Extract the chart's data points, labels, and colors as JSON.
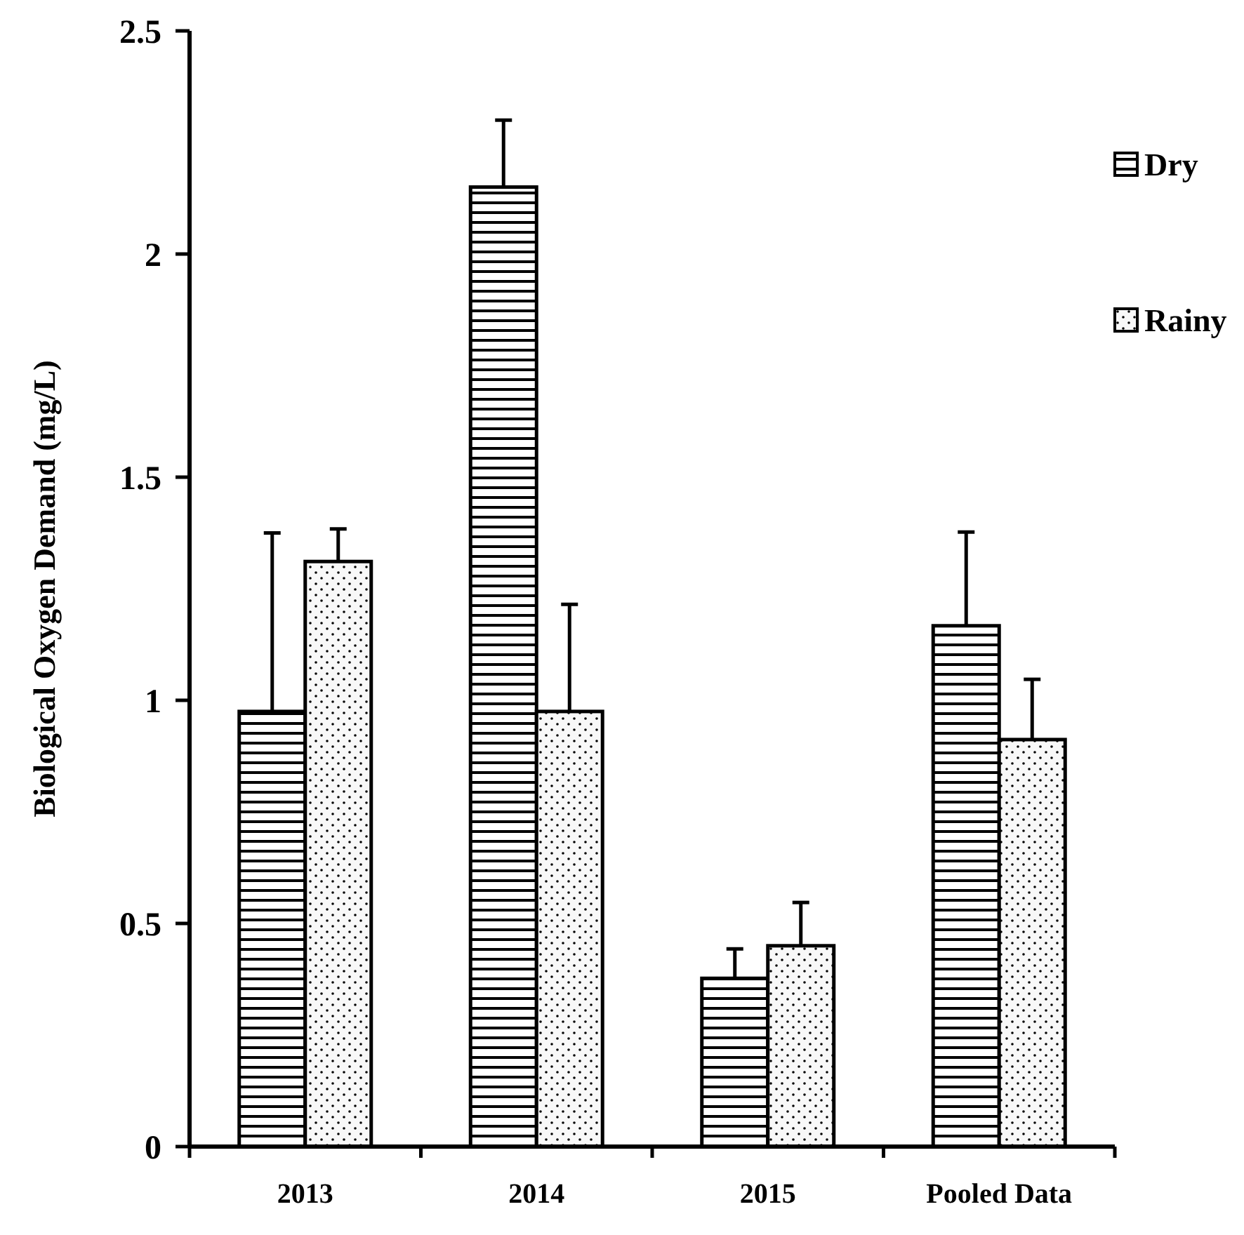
{
  "chart_data": {
    "type": "bar",
    "ylabel": "Biological Oxygen Demand (mg/L)",
    "categories": [
      "2013",
      "2014",
      "2015",
      "Pooled Data"
    ],
    "series": [
      {
        "name": "Dry",
        "color": "#000000",
        "values": [
          0.975,
          2.15,
          0.377,
          1.167
        ],
        "errors": [
          0.4,
          0.15,
          0.066,
          0.21
        ]
      },
      {
        "name": "Rainy",
        "color": "#000000",
        "values": [
          1.311,
          0.975,
          0.45,
          0.912
        ],
        "errors": [
          0.073,
          0.24,
          0.097,
          0.135
        ]
      }
    ],
    "ylim": [
      0,
      2.5
    ],
    "yticks": [
      0,
      0.5,
      1,
      1.5,
      2,
      2.5
    ],
    "legend": "top right",
    "grid": false
  }
}
